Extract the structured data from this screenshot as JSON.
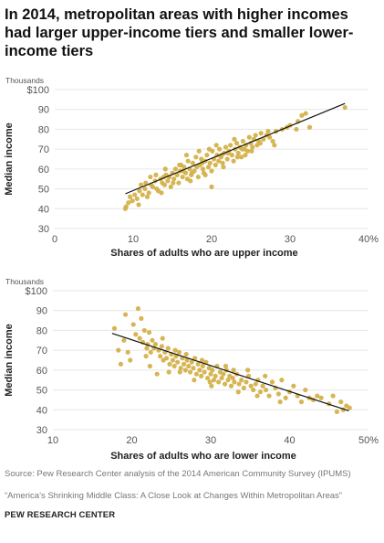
{
  "title": "In 2014, metropolitan areas with higher incomes had larger upper-income tiers and smaller lower-income tiers",
  "colors": {
    "points": "#d4b14a",
    "trend": "#111111",
    "grid": "#e6e6e6"
  },
  "chart_data": [
    {
      "type": "scatter",
      "units_note": "Thousands",
      "xlabel": "Shares of adults who are upper income",
      "ylabel": "Median income",
      "xlim": [
        0,
        40
      ],
      "ylim": [
        30,
        100
      ],
      "x_ticks": [
        0,
        10,
        20,
        30,
        40
      ],
      "x_tick_labels": [
        "0",
        "10",
        "20",
        "30",
        "40%"
      ],
      "y_ticks": [
        30,
        40,
        50,
        60,
        70,
        80,
        90,
        100
      ],
      "y_tick_labels": [
        "30",
        "40",
        "50",
        "60",
        "70",
        "80",
        "90",
        "$100"
      ],
      "trend_line": [
        [
          9.0,
          47.5
        ],
        [
          37.0,
          93.0
        ]
      ],
      "points": [
        [
          9.0,
          40
        ],
        [
          9.1,
          41
        ],
        [
          9.4,
          43
        ],
        [
          9.6,
          46
        ],
        [
          9.9,
          44
        ],
        [
          10.2,
          47
        ],
        [
          10.5,
          45
        ],
        [
          10.8,
          49
        ],
        [
          11.0,
          52
        ],
        [
          11.2,
          47
        ],
        [
          11.5,
          50
        ],
        [
          11.8,
          46
        ],
        [
          12.0,
          48
        ],
        [
          12.3,
          52
        ],
        [
          12.5,
          51
        ],
        [
          12.8,
          54
        ],
        [
          13.0,
          50
        ],
        [
          13.2,
          49
        ],
        [
          13.5,
          55
        ],
        [
          13.7,
          53
        ],
        [
          14.0,
          52
        ],
        [
          14.2,
          57
        ],
        [
          14.4,
          54
        ],
        [
          14.6,
          56
        ],
        [
          14.8,
          51
        ],
        [
          15.0,
          58
        ],
        [
          15.2,
          55
        ],
        [
          15.4,
          60
        ],
        [
          15.6,
          57
        ],
        [
          15.8,
          53
        ],
        [
          16.0,
          59
        ],
        [
          16.1,
          62
        ],
        [
          16.3,
          56
        ],
        [
          16.5,
          61
        ],
        [
          16.7,
          58
        ],
        [
          16.9,
          55
        ],
        [
          17.0,
          64
        ],
        [
          17.2,
          60
        ],
        [
          17.4,
          57
        ],
        [
          17.6,
          63
        ],
        [
          17.8,
          59
        ],
        [
          18.0,
          66
        ],
        [
          18.1,
          61
        ],
        [
          18.3,
          56
        ],
        [
          18.5,
          62
        ],
        [
          18.7,
          65
        ],
        [
          18.9,
          60
        ],
        [
          19.0,
          58
        ],
        [
          19.2,
          64
        ],
        [
          19.4,
          67
        ],
        [
          19.6,
          61
        ],
        [
          19.8,
          63
        ],
        [
          20.0,
          59
        ],
        [
          20.1,
          69
        ],
        [
          20.3,
          65
        ],
        [
          20.5,
          62
        ],
        [
          20.7,
          67
        ],
        [
          20.9,
          64
        ],
        [
          21.0,
          70
        ],
        [
          21.2,
          66
        ],
        [
          21.4,
          63
        ],
        [
          21.6,
          68
        ],
        [
          21.8,
          71
        ],
        [
          22.0,
          65
        ],
        [
          22.2,
          69
        ],
        [
          22.4,
          72
        ],
        [
          22.6,
          67
        ],
        [
          22.8,
          64
        ],
        [
          23.0,
          70
        ],
        [
          23.2,
          73
        ],
        [
          23.4,
          68
        ],
        [
          23.6,
          71
        ],
        [
          23.8,
          66
        ],
        [
          24.0,
          74
        ],
        [
          24.2,
          70
        ],
        [
          24.4,
          72
        ],
        [
          24.6,
          69
        ],
        [
          24.8,
          76
        ],
        [
          25.0,
          73
        ],
        [
          25.2,
          71
        ],
        [
          25.4,
          75
        ],
        [
          25.6,
          77
        ],
        [
          25.8,
          72
        ],
        [
          26.0,
          74
        ],
        [
          26.3,
          78
        ],
        [
          26.6,
          75
        ],
        [
          27.0,
          77
        ],
        [
          27.4,
          76
        ],
        [
          27.8,
          74
        ],
        [
          28.2,
          79
        ],
        [
          29.0,
          80
        ],
        [
          29.6,
          81
        ],
        [
          30.0,
          82
        ],
        [
          30.8,
          80
        ],
        [
          31.0,
          84
        ],
        [
          31.5,
          87
        ],
        [
          32.0,
          88
        ],
        [
          32.5,
          81
        ],
        [
          37.0,
          91
        ],
        [
          10.7,
          42
        ],
        [
          12.2,
          56
        ],
        [
          13.6,
          48
        ],
        [
          15.9,
          62
        ],
        [
          16.8,
          67
        ],
        [
          17.3,
          54
        ],
        [
          18.4,
          69
        ],
        [
          19.7,
          70
        ],
        [
          20.6,
          72
        ],
        [
          21.5,
          61
        ],
        [
          22.1,
          68
        ],
        [
          23.3,
          66
        ],
        [
          24.3,
          67
        ],
        [
          25.1,
          69
        ],
        [
          26.2,
          73
        ],
        [
          27.2,
          79
        ],
        [
          28.0,
          72
        ],
        [
          20.0,
          51
        ],
        [
          19.2,
          57
        ],
        [
          14.1,
          60
        ],
        [
          17.5,
          58
        ],
        [
          18.8,
          63
        ],
        [
          21.3,
          67
        ],
        [
          23.9,
          70
        ],
        [
          22.9,
          75
        ],
        [
          16.4,
          59
        ],
        [
          15.1,
          53
        ],
        [
          12.9,
          57
        ],
        [
          11.6,
          53
        ],
        [
          13.9,
          56
        ]
      ]
    },
    {
      "type": "scatter",
      "units_note": "Thousands",
      "xlabel": "Shares of adults who are lower income",
      "ylabel": "Median income",
      "xlim": [
        10,
        50
      ],
      "ylim": [
        30,
        100
      ],
      "x_ticks": [
        10,
        20,
        30,
        40,
        50
      ],
      "x_tick_labels": [
        "10",
        "20",
        "30",
        "40",
        "50%"
      ],
      "y_ticks": [
        30,
        40,
        50,
        60,
        70,
        80,
        90,
        100
      ],
      "y_tick_labels": [
        "30",
        "40",
        "50",
        "60",
        "70",
        "80",
        "90",
        "$100"
      ],
      "trend_line": [
        [
          17.5,
          78.5
        ],
        [
          47.5,
          39.5
        ]
      ],
      "points": [
        [
          17.8,
          81
        ],
        [
          18.3,
          70
        ],
        [
          18.6,
          63
        ],
        [
          19.0,
          75
        ],
        [
          19.2,
          88
        ],
        [
          19.5,
          69
        ],
        [
          20.5,
          78
        ],
        [
          20.8,
          91
        ],
        [
          21.0,
          76
        ],
        [
          21.2,
          86
        ],
        [
          21.4,
          74
        ],
        [
          21.6,
          80
        ],
        [
          21.8,
          67
        ],
        [
          22.0,
          73
        ],
        [
          22.2,
          79
        ],
        [
          22.4,
          69
        ],
        [
          22.6,
          75
        ],
        [
          22.8,
          71
        ],
        [
          23.0,
          73
        ],
        [
          23.2,
          58
        ],
        [
          23.4,
          70
        ],
        [
          23.6,
          67
        ],
        [
          23.8,
          72
        ],
        [
          24.0,
          65
        ],
        [
          24.2,
          69
        ],
        [
          24.4,
          66
        ],
        [
          24.6,
          71
        ],
        [
          24.8,
          63
        ],
        [
          25.0,
          68
        ],
        [
          25.2,
          65
        ],
        [
          25.4,
          62
        ],
        [
          25.6,
          67
        ],
        [
          25.8,
          64
        ],
        [
          26.0,
          69
        ],
        [
          26.2,
          61
        ],
        [
          26.4,
          66
        ],
        [
          26.6,
          63
        ],
        [
          26.8,
          60
        ],
        [
          27.0,
          65
        ],
        [
          27.2,
          62
        ],
        [
          27.4,
          59
        ],
        [
          27.6,
          64
        ],
        [
          27.8,
          61
        ],
        [
          28.0,
          66
        ],
        [
          28.2,
          58
        ],
        [
          28.4,
          63
        ],
        [
          28.6,
          60
        ],
        [
          28.8,
          57
        ],
        [
          29.0,
          62
        ],
        [
          29.2,
          59
        ],
        [
          29.4,
          64
        ],
        [
          29.6,
          56
        ],
        [
          29.8,
          61
        ],
        [
          30.0,
          58
        ],
        [
          30.2,
          60
        ],
        [
          30.4,
          55
        ],
        [
          30.6,
          57
        ],
        [
          30.8,
          62
        ],
        [
          31.0,
          54
        ],
        [
          31.2,
          59
        ],
        [
          31.4,
          56
        ],
        [
          31.6,
          58
        ],
        [
          31.8,
          53
        ],
        [
          32.0,
          60
        ],
        [
          32.2,
          55
        ],
        [
          32.4,
          57
        ],
        [
          32.6,
          52
        ],
        [
          32.8,
          56
        ],
        [
          33.0,
          54
        ],
        [
          33.3,
          58
        ],
        [
          33.6,
          53
        ],
        [
          33.9,
          55
        ],
        [
          34.2,
          51
        ],
        [
          34.5,
          54
        ],
        [
          34.8,
          57
        ],
        [
          35.1,
          52
        ],
        [
          35.4,
          50
        ],
        [
          35.7,
          53
        ],
        [
          36.0,
          55
        ],
        [
          36.3,
          49
        ],
        [
          36.6,
          52
        ],
        [
          37.0,
          50
        ],
        [
          37.4,
          47
        ],
        [
          37.8,
          54
        ],
        [
          38.2,
          51
        ],
        [
          38.6,
          48
        ],
        [
          39.0,
          55
        ],
        [
          39.5,
          46
        ],
        [
          40.0,
          49
        ],
        [
          40.5,
          52
        ],
        [
          41.0,
          47
        ],
        [
          41.5,
          44
        ],
        [
          42.0,
          50
        ],
        [
          42.5,
          46
        ],
        [
          43.0,
          45
        ],
        [
          43.5,
          47
        ],
        [
          44.0,
          46
        ],
        [
          45.0,
          43
        ],
        [
          45.5,
          47
        ],
        [
          46.5,
          44
        ],
        [
          46.8,
          40
        ],
        [
          47.2,
          42
        ],
        [
          47.6,
          41
        ],
        [
          46.0,
          39
        ],
        [
          19.8,
          65
        ],
        [
          22.3,
          62
        ],
        [
          23.9,
          76
        ],
        [
          25.5,
          70
        ],
        [
          26.9,
          68
        ],
        [
          28.9,
          65
        ],
        [
          30.1,
          52
        ],
        [
          31.9,
          62
        ],
        [
          33.5,
          49
        ],
        [
          34.7,
          60
        ],
        [
          36.9,
          57
        ],
        [
          38.8,
          44
        ],
        [
          24.7,
          59
        ],
        [
          27.9,
          55
        ],
        [
          29.9,
          54
        ],
        [
          32.9,
          60
        ],
        [
          35.9,
          47
        ],
        [
          21.9,
          71
        ],
        [
          20.2,
          83
        ],
        [
          26.1,
          59
        ]
      ]
    }
  ],
  "source_text": "Source: Pew Research Center analysis of the 2014 American Community Survey (IPUMS)",
  "report_text": "“America’s Shrinking Middle Class: A Close Look at Changes Within Metropolitan Areas”",
  "org_text": "PEW RESEARCH CENTER"
}
